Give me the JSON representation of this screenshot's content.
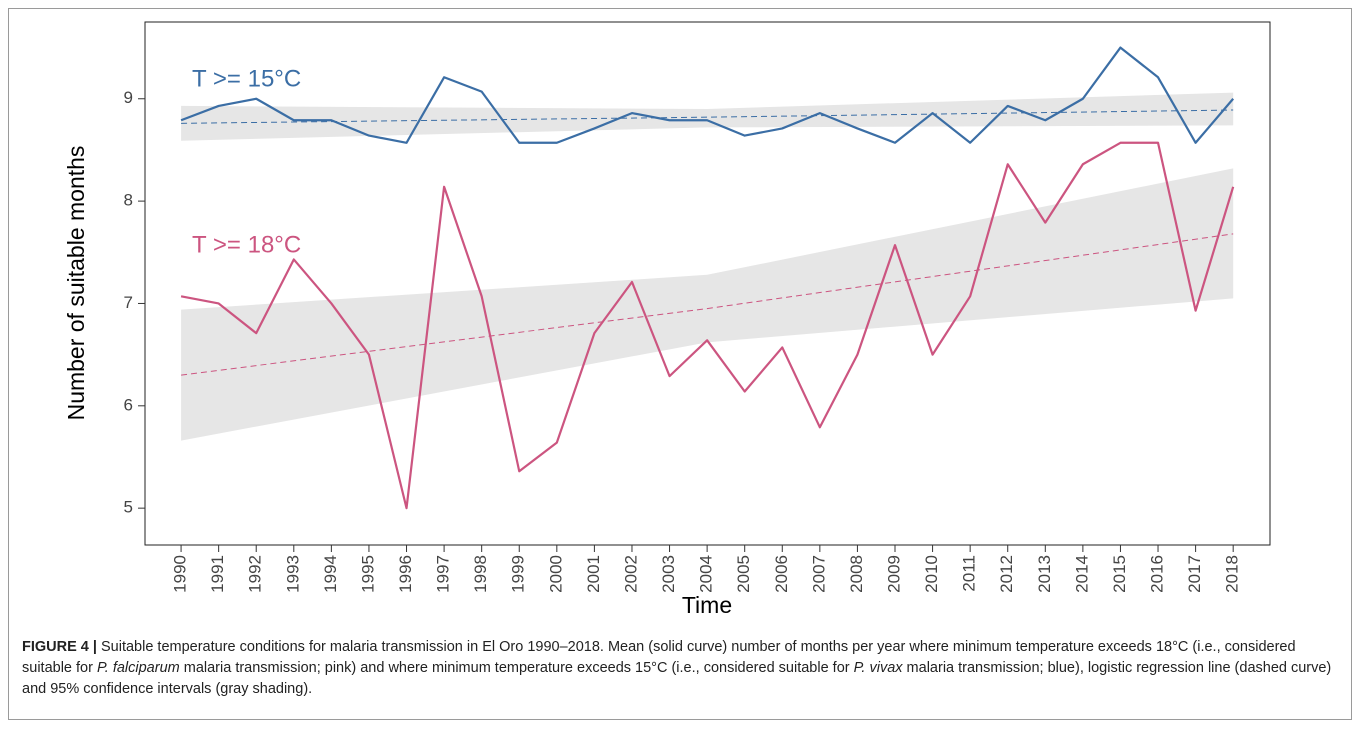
{
  "chart_data": {
    "type": "line",
    "x_label": "Time",
    "y_label": "Number of suitable months",
    "x": [
      1990,
      1991,
      1992,
      1993,
      1994,
      1995,
      1996,
      1997,
      1998,
      1999,
      2000,
      2001,
      2002,
      2003,
      2004,
      2005,
      2006,
      2007,
      2008,
      2009,
      2010,
      2011,
      2012,
      2013,
      2014,
      2015,
      2016,
      2017,
      2018
    ],
    "xlim": [
      1989.04,
      2018.98
    ],
    "xticks": [
      1990,
      1991,
      1992,
      1993,
      1994,
      1995,
      1996,
      1997,
      1998,
      1999,
      2000,
      2001,
      2002,
      2003,
      2004,
      2005,
      2006,
      2007,
      2008,
      2009,
      2010,
      2011,
      2012,
      2013,
      2014,
      2015,
      2016,
      2017,
      2018
    ],
    "ylim": [
      4.64,
      9.75
    ],
    "yticks": [
      5,
      6,
      7,
      8,
      9
    ],
    "band_color": "#e6e6e6",
    "series": [
      {
        "name": "T >= 15°C",
        "color": "#3b6ea5",
        "values": [
          8.79,
          8.93,
          9.0,
          8.79,
          8.79,
          8.64,
          8.57,
          9.21,
          9.07,
          8.57,
          8.57,
          8.71,
          8.86,
          8.79,
          8.79,
          8.64,
          8.71,
          8.86,
          8.71,
          8.57,
          8.86,
          8.57,
          8.93,
          8.79,
          9.0,
          9.5,
          9.21,
          8.57,
          9.0
        ],
        "trend": {
          "x": [
            1990,
            2004,
            2018
          ],
          "values": [
            8.76,
            8.82,
            8.89
          ],
          "lower": [
            8.59,
            8.72,
            8.74
          ],
          "upper": [
            8.93,
            8.9,
            9.06
          ]
        }
      },
      {
        "name": "T >= 18°C",
        "color": "#cc5580",
        "values": [
          7.07,
          7.0,
          6.71,
          7.43,
          7.0,
          6.5,
          5.0,
          8.14,
          7.07,
          5.36,
          5.64,
          6.71,
          7.21,
          6.29,
          6.64,
          6.14,
          6.57,
          5.79,
          6.5,
          7.57,
          6.5,
          7.07,
          8.36,
          7.79,
          8.36,
          8.57,
          8.57,
          6.93,
          8.14
        ],
        "trend": {
          "x": [
            1990,
            2004,
            2018
          ],
          "values": [
            6.3,
            6.95,
            7.68
          ],
          "lower": [
            5.66,
            6.62,
            7.05
          ],
          "upper": [
            6.94,
            7.28,
            8.32
          ]
        }
      }
    ]
  },
  "caption": {
    "label": "FIGURE 4 |",
    "parts": [
      {
        "text": " Suitable temperature conditions for malaria transmission in El Oro 1990–2018. Mean (solid curve) number of months per year where minimum temperature exceeds 18°C (i.e., considered suitable for ",
        "italic": false
      },
      {
        "text": "P. falciparum",
        "italic": true
      },
      {
        "text": " malaria transmission; pink) and where minimum temperature exceeds 15°C (i.e., considered suitable for ",
        "italic": false
      },
      {
        "text": "P. vivax",
        "italic": true
      },
      {
        "text": " malaria transmission; blue), logistic regression line (dashed curve) and 95% confidence intervals (gray shading).",
        "italic": false
      }
    ]
  }
}
